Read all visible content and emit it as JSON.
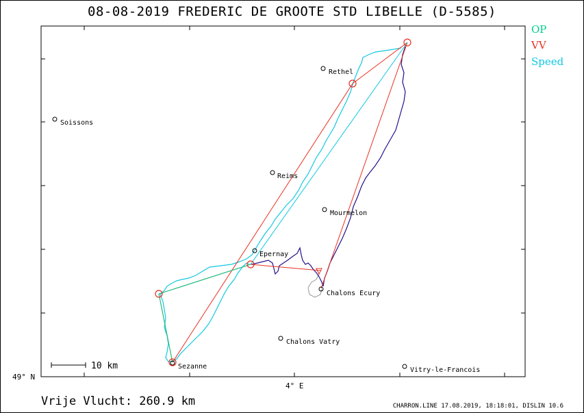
{
  "title": "08-08-2019   FREDERIC DE GROOTE   STD LIBELLE (D-5585)",
  "legend": [
    {
      "label": "OP",
      "color": "#00d08a"
    },
    {
      "label": "VV",
      "color": "#e83020"
    },
    {
      "label": "Speed",
      "color": "#10c8e0"
    }
  ],
  "axes": {
    "lat_label": "49° N",
    "lon_label": "4° E"
  },
  "scale": {
    "label": "10 km"
  },
  "footer": {
    "distance": "Vrije Vlucht:  260.9 km",
    "info": "CHARRON.LINE 17.08.2019, 18:18:01, DISLIN 10.6"
  },
  "places": [
    {
      "name": "Rethel",
      "icon": "circle-marker-icon"
    },
    {
      "name": "Soissons",
      "icon": "circle-marker-icon"
    },
    {
      "name": "Reims",
      "icon": "circle-marker-icon"
    },
    {
      "name": "Mourmelon",
      "icon": "circle-marker-icon"
    },
    {
      "name": "Epernay",
      "icon": "circle-marker-icon"
    },
    {
      "name": "Chalons Ecury",
      "icon": "circle-marker-icon"
    },
    {
      "name": "Chalons Vatry",
      "icon": "circle-marker-icon"
    },
    {
      "name": "Sezanne",
      "icon": "circle-marker-icon"
    },
    {
      "name": "Vitry-le-Francois",
      "icon": "circle-marker-icon"
    }
  ],
  "colors": {
    "track_climb": "#10c8e0",
    "track_glide": "#22108a",
    "track_ground": "#999999",
    "task_line": "#e83020",
    "op_line": "#00d08a"
  }
}
